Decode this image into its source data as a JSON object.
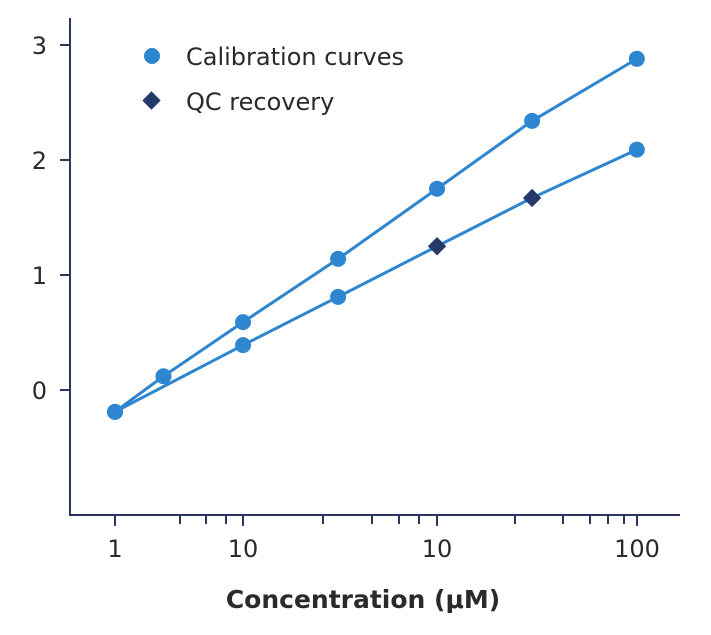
{
  "chart_data": {
    "type": "line",
    "title": "",
    "xlabel": "Concentration (μM)",
    "ylabel": "",
    "x_scale": "log (ticks as labeled)",
    "y_ticks": [
      "0",
      "1",
      "2",
      "3"
    ],
    "y_tick_values": [
      0,
      1,
      2,
      3
    ],
    "ylim": [
      -1.05,
      3.2
    ],
    "x_ticks": [
      {
        "label": "1",
        "pos": 0
      },
      {
        "label": "10",
        "pos": 1
      },
      {
        "label": "10",
        "pos": 2
      },
      {
        "label": "100",
        "pos": 3
      }
    ],
    "x_minor_ticks": [
      0.5,
      0.7,
      0.85,
      1.4,
      1.65,
      1.8,
      1.9,
      2.4,
      2.65,
      2.78,
      2.87,
      2.95
    ],
    "xlim": [
      -0.35,
      2.96
    ],
    "legend": {
      "position": "top-left",
      "entries": [
        {
          "label": "Calibration curves",
          "marker": "circle",
          "color": "#2f86d0"
        },
        {
          "label": "QC recovery",
          "marker": "diamond",
          "color": "#243a6a"
        }
      ]
    },
    "series": [
      {
        "name": "Calibration curve (upper)",
        "marker": "circle",
        "color": "#2f86d0",
        "points": [
          {
            "x": 0,
            "y": -0.19,
            "marker": "circle"
          },
          {
            "x": 0.25,
            "y": 0.12,
            "marker": "circle"
          },
          {
            "x": 0.66,
            "y": 0.59,
            "marker": "circle"
          },
          {
            "x": 1.15,
            "y": 1.14,
            "marker": "circle"
          },
          {
            "x": 1.66,
            "y": 1.75,
            "marker": "circle"
          },
          {
            "x": 2.15,
            "y": 2.34,
            "marker": "circle"
          },
          {
            "x": 2.69,
            "y": 2.88,
            "marker": "circle"
          }
        ]
      },
      {
        "name": "Calibration curve (lower)",
        "marker": "circle",
        "color": "#2f86d0",
        "points": [
          {
            "x": 0,
            "y": -0.19,
            "marker": "circle"
          },
          {
            "x": 0.66,
            "y": 0.39,
            "marker": "circle"
          },
          {
            "x": 1.15,
            "y": 0.81,
            "marker": "circle"
          },
          {
            "x": 1.66,
            "y": 1.25,
            "marker": "diamond"
          },
          {
            "x": 2.15,
            "y": 1.67,
            "marker": "diamond"
          },
          {
            "x": 2.69,
            "y": 2.09,
            "marker": "circle"
          }
        ]
      }
    ]
  },
  "colors": {
    "axis": "#2a3560",
    "line": "#2f86d0",
    "circle": "#2f86d0",
    "diamond": "#243a6a"
  }
}
